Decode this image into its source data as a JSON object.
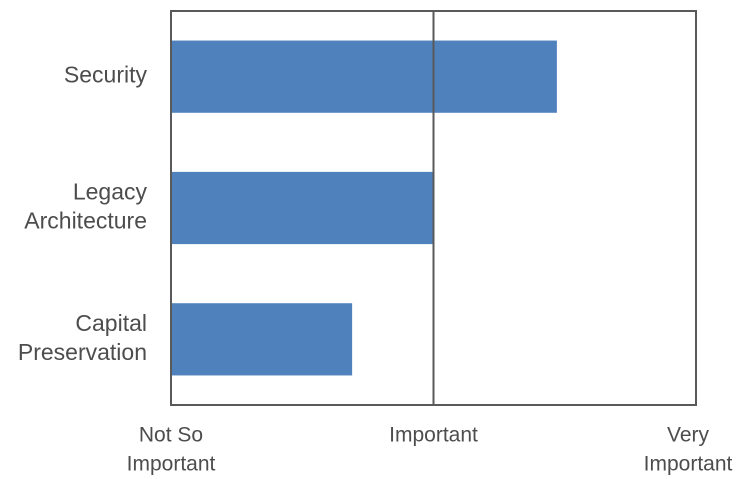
{
  "chart_data": {
    "type": "bar",
    "orientation": "horizontal",
    "categories": [
      [
        "Security"
      ],
      [
        "Legacy",
        "Architecture"
      ],
      [
        "Capital",
        "Preservation"
      ]
    ],
    "values": [
      1.47,
      1.0,
      0.69
    ],
    "xlim": [
      0,
      2
    ],
    "xticks": [
      {
        "value": 0,
        "label": [
          "Not So",
          "Important"
        ]
      },
      {
        "value": 1,
        "label": [
          "Important"
        ]
      },
      {
        "value": 2,
        "label": [
          "Very",
          "Important"
        ]
      }
    ],
    "reference_line": 1,
    "bar_color": "#4f81bd",
    "axis_color": "#595959",
    "grid": false,
    "legend": "none",
    "title": "",
    "xlabel": "",
    "ylabel": ""
  }
}
